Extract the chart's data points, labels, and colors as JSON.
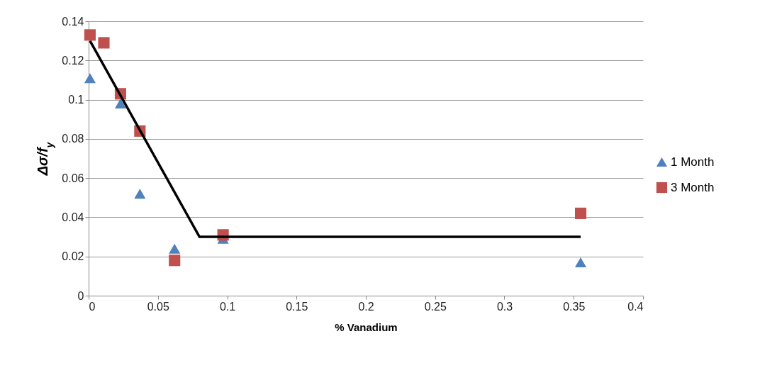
{
  "chart_data": {
    "type": "scatter",
    "xlabel": "% Vanadium",
    "ylabel": "Δσ/f$_{y}$",
    "xlim": [
      0,
      0.4
    ],
    "xticks": [
      0,
      0.05,
      0.1,
      0.15,
      0.2,
      0.25,
      0.3,
      0.35,
      0.4
    ],
    "ylim": [
      0,
      0.14
    ],
    "yticks": [
      0,
      0.02,
      0.04,
      0.06,
      0.08,
      0.1,
      0.12,
      0.14
    ],
    "grid": "y",
    "legend": "right",
    "series": [
      {
        "name": "1 Month",
        "color": "#4f81bd",
        "marker": "triangle",
        "x": [
          0.001,
          0.011,
          0.023,
          0.037,
          0.062,
          0.097,
          0.355
        ],
        "values": [
          0.111,
          null,
          0.098,
          0.052,
          0.024,
          0.029,
          0.017
        ]
      },
      {
        "name": "3 Month",
        "color": "#c0504d",
        "marker": "square",
        "x": [
          0.001,
          0.011,
          0.023,
          0.037,
          0.062,
          0.097,
          0.355
        ],
        "values": [
          0.133,
          0.129,
          0.103,
          0.084,
          0.018,
          0.031,
          0.042
        ]
      },
      {
        "type": "line",
        "color": "#000000",
        "marker": "none",
        "line_style": "solid",
        "x": [
          0.001,
          0.08,
          0.355
        ],
        "values": [
          0.13,
          0.03,
          0.03
        ]
      }
    ]
  }
}
